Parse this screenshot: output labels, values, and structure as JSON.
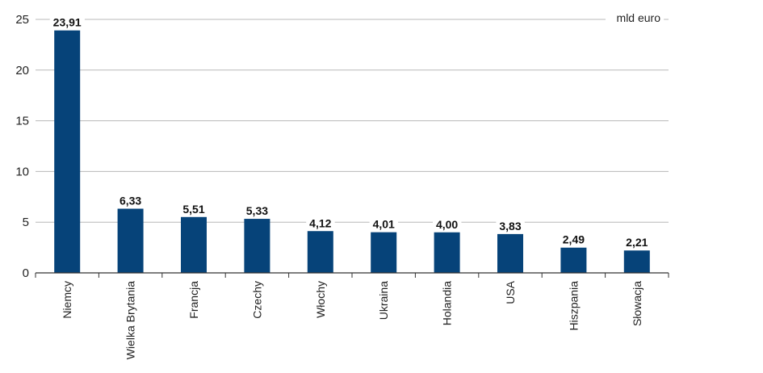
{
  "chart_data": {
    "type": "bar",
    "unit_label": "mld euro",
    "categories": [
      "Niemcy",
      "Wielka Brytania",
      "Francja",
      "Czechy",
      "Włochy",
      "Ukraina",
      "Holandia",
      "USA",
      "Hiszpania",
      "Słowacja"
    ],
    "values": [
      23.91,
      6.33,
      5.51,
      5.33,
      4.12,
      4.01,
      4.0,
      3.83,
      2.49,
      2.21
    ],
    "value_labels": [
      "23,91",
      "6,33",
      "5,51",
      "5,33",
      "4,12",
      "4,01",
      "4,00",
      "3,83",
      "2,49",
      "2,21"
    ],
    "yticks": [
      "0",
      "5",
      "10",
      "15",
      "20",
      "25"
    ],
    "ylim": [
      0,
      25
    ],
    "grid": true,
    "bar_color": "#064379",
    "grid_color": "#b8b8b8"
  }
}
